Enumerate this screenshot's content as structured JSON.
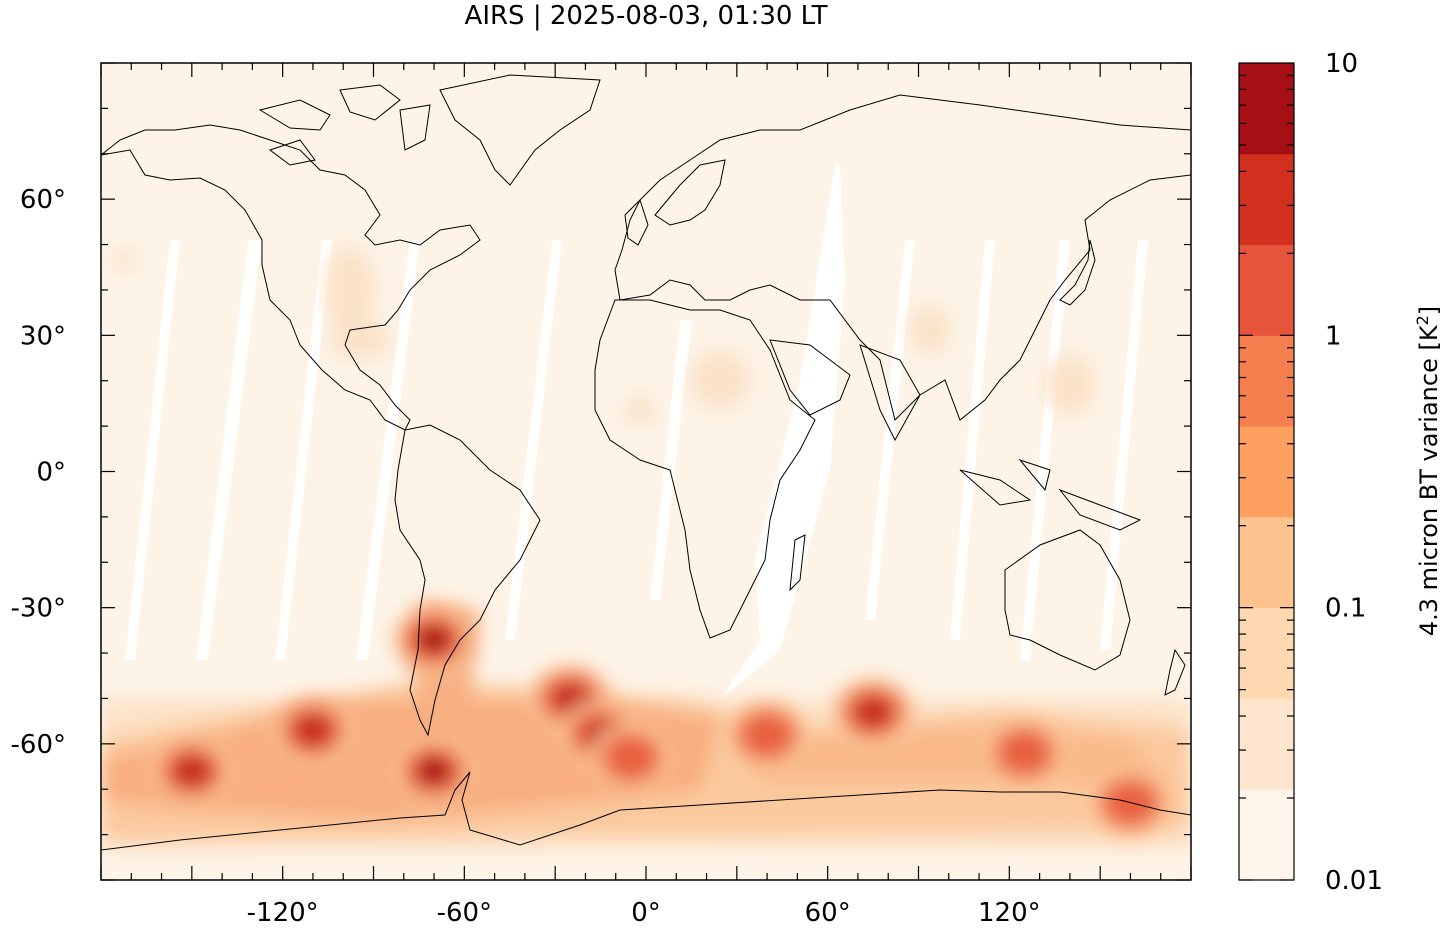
{
  "title": "AIRS | 2025-08-03, 01:30 LT",
  "map": {
    "projection": "equirectangular",
    "lon_range": [
      -180,
      180
    ],
    "lat_range": [
      -90,
      90
    ],
    "lon_ticks": [
      {
        "value": -120,
        "label": "-120°"
      },
      {
        "value": -60,
        "label": "-60°"
      },
      {
        "value": 0,
        "label": "0°"
      },
      {
        "value": 60,
        "label": "60°"
      },
      {
        "value": 120,
        "label": "120°"
      }
    ],
    "lat_ticks": [
      {
        "value": 60,
        "label": "60°"
      },
      {
        "value": 30,
        "label": "30°"
      },
      {
        "value": 0,
        "label": "0°"
      },
      {
        "value": -30,
        "label": "-30°"
      },
      {
        "value": -60,
        "label": "-60°"
      }
    ],
    "hotspots": [
      {
        "lon": -70,
        "lat": -37,
        "level": 4
      },
      {
        "lon": -70,
        "lat": -66,
        "level": 4
      },
      {
        "lon": -110,
        "lat": -57,
        "level": 3
      },
      {
        "lon": -150,
        "lat": -66,
        "level": 3
      },
      {
        "lon": -25,
        "lat": -50,
        "level": 3
      },
      {
        "lon": -15,
        "lat": -58,
        "level": 3
      },
      {
        "lon": -5,
        "lat": -63,
        "level": 2
      },
      {
        "lon": 75,
        "lat": -53,
        "level": 3
      },
      {
        "lon": 40,
        "lat": -58,
        "level": 2
      },
      {
        "lon": 125,
        "lat": -62,
        "level": 2
      },
      {
        "lon": 160,
        "lat": -73,
        "level": 2
      }
    ]
  },
  "colorbar": {
    "label": "4.3 micron BT variance [K",
    "label_sup": "2",
    "label_end": "]",
    "scale": "log",
    "range": [
      0.01,
      10
    ],
    "tick_labels": [
      {
        "value": 10,
        "label": "10"
      },
      {
        "value": 1,
        "label": "1"
      },
      {
        "value": 0.1,
        "label": "0.1"
      },
      {
        "value": 0.01,
        "label": "0.01"
      }
    ],
    "colors": [
      "#fff5eb",
      "#fee6ce",
      "#fdd8b0",
      "#fdc48f",
      "#fda060",
      "#f67f4f",
      "#e6553b",
      "#d1301f",
      "#a50f15"
    ]
  }
}
